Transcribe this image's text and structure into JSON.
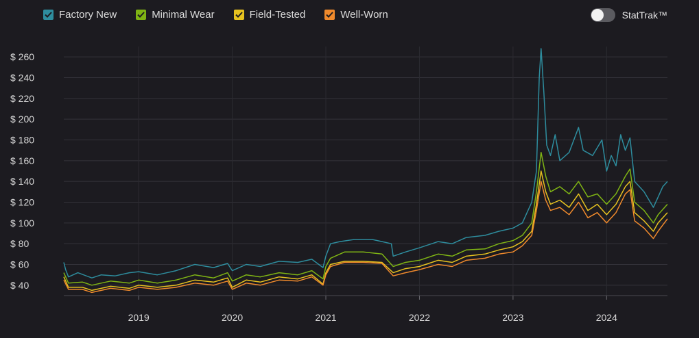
{
  "legend": [
    {
      "label": "Factory New",
      "color": "#2e8d9e"
    },
    {
      "label": "Minimal Wear",
      "color": "#7fb414"
    },
    {
      "label": "Field-Tested",
      "color": "#e6c21f"
    },
    {
      "label": "Well-Worn",
      "color": "#f08a2c"
    }
  ],
  "toggle": {
    "label": "StatTrak™",
    "on": false
  },
  "chart_data": {
    "type": "line",
    "ylim": [
      30,
      270
    ],
    "yticks": [
      40,
      60,
      80,
      100,
      120,
      140,
      160,
      180,
      200,
      220,
      240,
      260
    ],
    "ytick_labels": [
      "$ 40",
      "$ 60",
      "$ 80",
      "$ 100",
      "$ 120",
      "$ 140",
      "$ 160",
      "$ 180",
      "$ 200",
      "$ 220",
      "$ 240",
      "$ 260"
    ],
    "xlim": [
      2018.2,
      2024.65
    ],
    "xticks": [
      2019,
      2020,
      2021,
      2022,
      2023,
      2024
    ],
    "xtick_labels": [
      "2019",
      "2020",
      "2021",
      "2022",
      "2023",
      "2024"
    ],
    "grid": true,
    "series": [
      {
        "name": "Factory New",
        "color": "#2e8d9e",
        "points": [
          [
            2018.2,
            62
          ],
          [
            2018.22,
            55
          ],
          [
            2018.25,
            48
          ],
          [
            2018.35,
            52
          ],
          [
            2018.5,
            47
          ],
          [
            2018.6,
            50
          ],
          [
            2018.75,
            49
          ],
          [
            2018.9,
            52
          ],
          [
            2019.0,
            53
          ],
          [
            2019.2,
            50
          ],
          [
            2019.4,
            54
          ],
          [
            2019.6,
            60
          ],
          [
            2019.8,
            57
          ],
          [
            2019.95,
            61
          ],
          [
            2020.0,
            54
          ],
          [
            2020.15,
            60
          ],
          [
            2020.3,
            58
          ],
          [
            2020.5,
            63
          ],
          [
            2020.7,
            62
          ],
          [
            2020.85,
            65
          ],
          [
            2020.97,
            57
          ],
          [
            2021.0,
            68
          ],
          [
            2021.05,
            80
          ],
          [
            2021.15,
            82
          ],
          [
            2021.3,
            84
          ],
          [
            2021.5,
            84
          ],
          [
            2021.6,
            82
          ],
          [
            2021.7,
            80
          ],
          [
            2021.72,
            68
          ],
          [
            2021.85,
            72
          ],
          [
            2022.0,
            76
          ],
          [
            2022.2,
            82
          ],
          [
            2022.35,
            80
          ],
          [
            2022.5,
            86
          ],
          [
            2022.7,
            88
          ],
          [
            2022.85,
            92
          ],
          [
            2023.0,
            95
          ],
          [
            2023.1,
            100
          ],
          [
            2023.2,
            120
          ],
          [
            2023.25,
            150
          ],
          [
            2023.28,
            240
          ],
          [
            2023.3,
            268
          ],
          [
            2023.33,
            225
          ],
          [
            2023.36,
            175
          ],
          [
            2023.4,
            165
          ],
          [
            2023.45,
            185
          ],
          [
            2023.5,
            160
          ],
          [
            2023.6,
            168
          ],
          [
            2023.7,
            192
          ],
          [
            2023.75,
            170
          ],
          [
            2023.85,
            165
          ],
          [
            2023.95,
            180
          ],
          [
            2024.0,
            150
          ],
          [
            2024.05,
            165
          ],
          [
            2024.1,
            155
          ],
          [
            2024.15,
            185
          ],
          [
            2024.2,
            170
          ],
          [
            2024.25,
            182
          ],
          [
            2024.3,
            140
          ],
          [
            2024.4,
            130
          ],
          [
            2024.5,
            115
          ],
          [
            2024.55,
            125
          ],
          [
            2024.6,
            135
          ],
          [
            2024.65,
            140
          ]
        ]
      },
      {
        "name": "Minimal Wear",
        "color": "#7fb414",
        "points": [
          [
            2018.2,
            52
          ],
          [
            2018.25,
            42
          ],
          [
            2018.4,
            43
          ],
          [
            2018.5,
            40
          ],
          [
            2018.7,
            44
          ],
          [
            2018.9,
            42
          ],
          [
            2019.0,
            45
          ],
          [
            2019.2,
            42
          ],
          [
            2019.4,
            45
          ],
          [
            2019.6,
            50
          ],
          [
            2019.8,
            47
          ],
          [
            2019.95,
            52
          ],
          [
            2020.0,
            44
          ],
          [
            2020.15,
            50
          ],
          [
            2020.3,
            48
          ],
          [
            2020.5,
            52
          ],
          [
            2020.7,
            50
          ],
          [
            2020.85,
            54
          ],
          [
            2020.97,
            46
          ],
          [
            2021.0,
            58
          ],
          [
            2021.05,
            66
          ],
          [
            2021.2,
            72
          ],
          [
            2021.4,
            72
          ],
          [
            2021.6,
            70
          ],
          [
            2021.72,
            58
          ],
          [
            2021.85,
            62
          ],
          [
            2022.0,
            64
          ],
          [
            2022.2,
            70
          ],
          [
            2022.35,
            68
          ],
          [
            2022.5,
            74
          ],
          [
            2022.7,
            75
          ],
          [
            2022.85,
            80
          ],
          [
            2023.0,
            83
          ],
          [
            2023.1,
            88
          ],
          [
            2023.2,
            100
          ],
          [
            2023.25,
            130
          ],
          [
            2023.3,
            168
          ],
          [
            2023.35,
            145
          ],
          [
            2023.4,
            130
          ],
          [
            2023.5,
            135
          ],
          [
            2023.6,
            128
          ],
          [
            2023.7,
            140
          ],
          [
            2023.8,
            125
          ],
          [
            2023.9,
            128
          ],
          [
            2024.0,
            118
          ],
          [
            2024.1,
            128
          ],
          [
            2024.2,
            145
          ],
          [
            2024.25,
            152
          ],
          [
            2024.3,
            120
          ],
          [
            2024.4,
            112
          ],
          [
            2024.5,
            100
          ],
          [
            2024.55,
            108
          ],
          [
            2024.65,
            118
          ]
        ]
      },
      {
        "name": "Field-Tested",
        "color": "#e6c21f",
        "points": [
          [
            2018.2,
            48
          ],
          [
            2018.25,
            38
          ],
          [
            2018.4,
            38
          ],
          [
            2018.5,
            35
          ],
          [
            2018.7,
            39
          ],
          [
            2018.9,
            37
          ],
          [
            2019.0,
            40
          ],
          [
            2019.2,
            38
          ],
          [
            2019.4,
            40
          ],
          [
            2019.6,
            45
          ],
          [
            2019.8,
            43
          ],
          [
            2019.95,
            47
          ],
          [
            2020.0,
            38
          ],
          [
            2020.15,
            45
          ],
          [
            2020.3,
            43
          ],
          [
            2020.5,
            48
          ],
          [
            2020.7,
            46
          ],
          [
            2020.85,
            50
          ],
          [
            2020.97,
            41
          ],
          [
            2021.0,
            52
          ],
          [
            2021.05,
            60
          ],
          [
            2021.2,
            63
          ],
          [
            2021.4,
            63
          ],
          [
            2021.6,
            62
          ],
          [
            2021.72,
            52
          ],
          [
            2021.85,
            56
          ],
          [
            2022.0,
            58
          ],
          [
            2022.2,
            64
          ],
          [
            2022.35,
            62
          ],
          [
            2022.5,
            68
          ],
          [
            2022.7,
            70
          ],
          [
            2022.85,
            74
          ],
          [
            2023.0,
            77
          ],
          [
            2023.1,
            82
          ],
          [
            2023.2,
            92
          ],
          [
            2023.25,
            118
          ],
          [
            2023.3,
            150
          ],
          [
            2023.35,
            130
          ],
          [
            2023.4,
            118
          ],
          [
            2023.5,
            122
          ],
          [
            2023.6,
            115
          ],
          [
            2023.7,
            128
          ],
          [
            2023.8,
            112
          ],
          [
            2023.9,
            118
          ],
          [
            2024.0,
            108
          ],
          [
            2024.1,
            118
          ],
          [
            2024.2,
            135
          ],
          [
            2024.25,
            140
          ],
          [
            2024.3,
            110
          ],
          [
            2024.4,
            102
          ],
          [
            2024.5,
            92
          ],
          [
            2024.55,
            100
          ],
          [
            2024.65,
            110
          ]
        ]
      },
      {
        "name": "Well-Worn",
        "color": "#f08a2c",
        "points": [
          [
            2018.2,
            45
          ],
          [
            2018.25,
            36
          ],
          [
            2018.4,
            36
          ],
          [
            2018.5,
            33
          ],
          [
            2018.7,
            37
          ],
          [
            2018.9,
            35
          ],
          [
            2019.0,
            38
          ],
          [
            2019.2,
            36
          ],
          [
            2019.4,
            38
          ],
          [
            2019.6,
            42
          ],
          [
            2019.8,
            40
          ],
          [
            2019.95,
            44
          ],
          [
            2020.0,
            36
          ],
          [
            2020.15,
            42
          ],
          [
            2020.3,
            40
          ],
          [
            2020.5,
            45
          ],
          [
            2020.7,
            44
          ],
          [
            2020.85,
            48
          ],
          [
            2020.97,
            40
          ],
          [
            2021.0,
            50
          ],
          [
            2021.05,
            58
          ],
          [
            2021.2,
            62
          ],
          [
            2021.4,
            62
          ],
          [
            2021.6,
            61
          ],
          [
            2021.72,
            49
          ],
          [
            2021.85,
            52
          ],
          [
            2022.0,
            55
          ],
          [
            2022.2,
            60
          ],
          [
            2022.35,
            58
          ],
          [
            2022.5,
            64
          ],
          [
            2022.7,
            66
          ],
          [
            2022.85,
            70
          ],
          [
            2023.0,
            72
          ],
          [
            2023.1,
            78
          ],
          [
            2023.2,
            88
          ],
          [
            2023.25,
            112
          ],
          [
            2023.3,
            140
          ],
          [
            2023.35,
            122
          ],
          [
            2023.4,
            112
          ],
          [
            2023.5,
            115
          ],
          [
            2023.6,
            108
          ],
          [
            2023.7,
            120
          ],
          [
            2023.8,
            105
          ],
          [
            2023.9,
            110
          ],
          [
            2024.0,
            100
          ],
          [
            2024.1,
            110
          ],
          [
            2024.2,
            128
          ],
          [
            2024.25,
            132
          ],
          [
            2024.3,
            102
          ],
          [
            2024.4,
            95
          ],
          [
            2024.5,
            85
          ],
          [
            2024.55,
            92
          ],
          [
            2024.65,
            104
          ]
        ]
      }
    ]
  }
}
